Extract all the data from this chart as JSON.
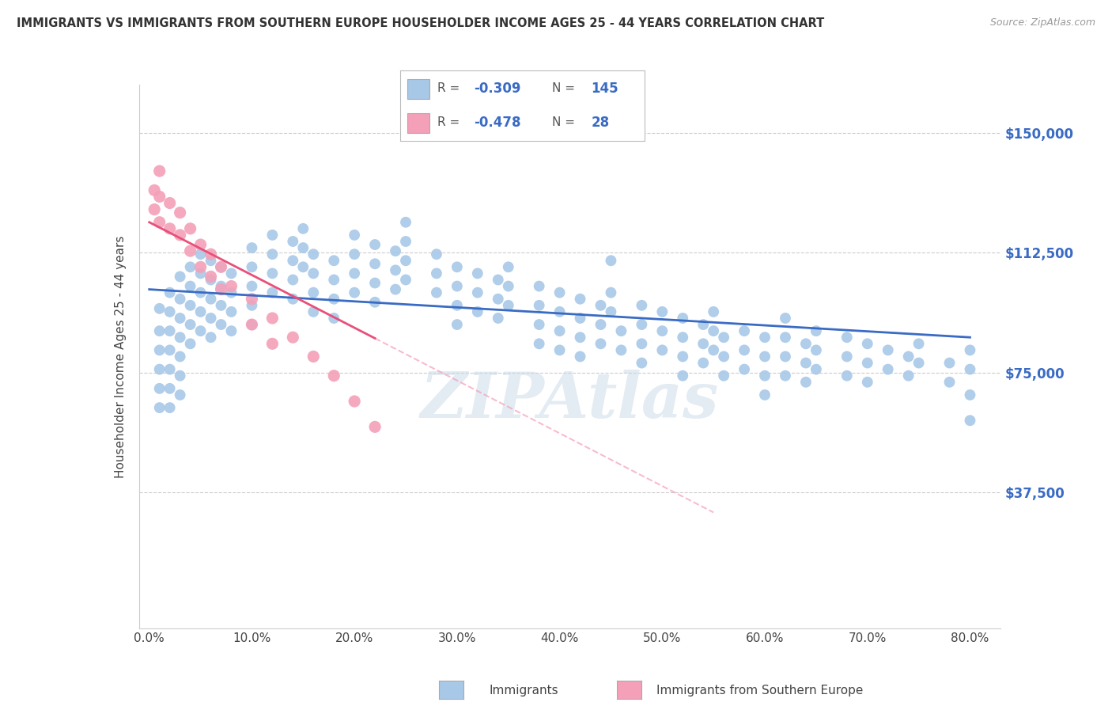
{
  "title": "IMMIGRANTS VS IMMIGRANTS FROM SOUTHERN EUROPE HOUSEHOLDER INCOME AGES 25 - 44 YEARS CORRELATION CHART",
  "source": "Source: ZipAtlas.com",
  "ylabel": "Householder Income Ages 25 - 44 years",
  "xlabel_ticks": [
    "0.0%",
    "10.0%",
    "20.0%",
    "30.0%",
    "40.0%",
    "50.0%",
    "60.0%",
    "70.0%",
    "80.0%"
  ],
  "xlabel_vals": [
    0,
    10,
    20,
    30,
    40,
    50,
    60,
    70,
    80
  ],
  "ytick_labels": [
    "$37,500",
    "$75,000",
    "$112,500",
    "$150,000"
  ],
  "ytick_vals": [
    37500,
    75000,
    112500,
    150000
  ],
  "ylim": [
    -5000,
    165000
  ],
  "xlim": [
    -1,
    83
  ],
  "blue_color": "#a8c8e8",
  "pink_color": "#f4a0b8",
  "blue_line_color": "#3a6bc4",
  "pink_line_color": "#e8507a",
  "watermark": "ZIPAtlas",
  "background_color": "#ffffff",
  "grid_color": "#cccccc",
  "legend_label_blue": "Immigrants",
  "legend_label_pink": "Immigrants from Southern Europe",
  "blue_scatter": [
    [
      1,
      95000
    ],
    [
      1,
      88000
    ],
    [
      1,
      82000
    ],
    [
      1,
      76000
    ],
    [
      1,
      70000
    ],
    [
      1,
      64000
    ],
    [
      2,
      100000
    ],
    [
      2,
      94000
    ],
    [
      2,
      88000
    ],
    [
      2,
      82000
    ],
    [
      2,
      76000
    ],
    [
      2,
      70000
    ],
    [
      2,
      64000
    ],
    [
      3,
      105000
    ],
    [
      3,
      98000
    ],
    [
      3,
      92000
    ],
    [
      3,
      86000
    ],
    [
      3,
      80000
    ],
    [
      3,
      74000
    ],
    [
      3,
      68000
    ],
    [
      4,
      108000
    ],
    [
      4,
      102000
    ],
    [
      4,
      96000
    ],
    [
      4,
      90000
    ],
    [
      4,
      84000
    ],
    [
      5,
      112000
    ],
    [
      5,
      106000
    ],
    [
      5,
      100000
    ],
    [
      5,
      94000
    ],
    [
      5,
      88000
    ],
    [
      6,
      110000
    ],
    [
      6,
      104000
    ],
    [
      6,
      98000
    ],
    [
      6,
      92000
    ],
    [
      6,
      86000
    ],
    [
      7,
      108000
    ],
    [
      7,
      102000
    ],
    [
      7,
      96000
    ],
    [
      7,
      90000
    ],
    [
      8,
      106000
    ],
    [
      8,
      100000
    ],
    [
      8,
      94000
    ],
    [
      8,
      88000
    ],
    [
      10,
      114000
    ],
    [
      10,
      108000
    ],
    [
      10,
      102000
    ],
    [
      10,
      96000
    ],
    [
      10,
      90000
    ],
    [
      12,
      118000
    ],
    [
      12,
      112000
    ],
    [
      12,
      106000
    ],
    [
      12,
      100000
    ],
    [
      14,
      116000
    ],
    [
      14,
      110000
    ],
    [
      14,
      104000
    ],
    [
      14,
      98000
    ],
    [
      15,
      120000
    ],
    [
      15,
      114000
    ],
    [
      15,
      108000
    ],
    [
      16,
      112000
    ],
    [
      16,
      106000
    ],
    [
      16,
      100000
    ],
    [
      16,
      94000
    ],
    [
      18,
      110000
    ],
    [
      18,
      104000
    ],
    [
      18,
      98000
    ],
    [
      18,
      92000
    ],
    [
      20,
      118000
    ],
    [
      20,
      112000
    ],
    [
      20,
      106000
    ],
    [
      20,
      100000
    ],
    [
      22,
      115000
    ],
    [
      22,
      109000
    ],
    [
      22,
      103000
    ],
    [
      22,
      97000
    ],
    [
      24,
      113000
    ],
    [
      24,
      107000
    ],
    [
      24,
      101000
    ],
    [
      25,
      122000
    ],
    [
      25,
      116000
    ],
    [
      25,
      110000
    ],
    [
      25,
      104000
    ],
    [
      28,
      112000
    ],
    [
      28,
      106000
    ],
    [
      28,
      100000
    ],
    [
      30,
      108000
    ],
    [
      30,
      102000
    ],
    [
      30,
      96000
    ],
    [
      30,
      90000
    ],
    [
      32,
      106000
    ],
    [
      32,
      100000
    ],
    [
      32,
      94000
    ],
    [
      34,
      104000
    ],
    [
      34,
      98000
    ],
    [
      34,
      92000
    ],
    [
      35,
      108000
    ],
    [
      35,
      102000
    ],
    [
      35,
      96000
    ],
    [
      38,
      102000
    ],
    [
      38,
      96000
    ],
    [
      38,
      90000
    ],
    [
      38,
      84000
    ],
    [
      40,
      100000
    ],
    [
      40,
      94000
    ],
    [
      40,
      88000
    ],
    [
      40,
      82000
    ],
    [
      42,
      98000
    ],
    [
      42,
      92000
    ],
    [
      42,
      86000
    ],
    [
      42,
      80000
    ],
    [
      44,
      96000
    ],
    [
      44,
      90000
    ],
    [
      44,
      84000
    ],
    [
      45,
      110000
    ],
    [
      45,
      100000
    ],
    [
      45,
      94000
    ],
    [
      46,
      88000
    ],
    [
      46,
      82000
    ],
    [
      48,
      96000
    ],
    [
      48,
      90000
    ],
    [
      48,
      84000
    ],
    [
      48,
      78000
    ],
    [
      50,
      94000
    ],
    [
      50,
      88000
    ],
    [
      50,
      82000
    ],
    [
      52,
      92000
    ],
    [
      52,
      86000
    ],
    [
      52,
      80000
    ],
    [
      52,
      74000
    ],
    [
      54,
      90000
    ],
    [
      54,
      84000
    ],
    [
      54,
      78000
    ],
    [
      55,
      94000
    ],
    [
      55,
      88000
    ],
    [
      55,
      82000
    ],
    [
      56,
      86000
    ],
    [
      56,
      80000
    ],
    [
      56,
      74000
    ],
    [
      58,
      88000
    ],
    [
      58,
      82000
    ],
    [
      58,
      76000
    ],
    [
      60,
      86000
    ],
    [
      60,
      80000
    ],
    [
      60,
      74000
    ],
    [
      60,
      68000
    ],
    [
      62,
      92000
    ],
    [
      62,
      86000
    ],
    [
      62,
      80000
    ],
    [
      62,
      74000
    ],
    [
      64,
      84000
    ],
    [
      64,
      78000
    ],
    [
      64,
      72000
    ],
    [
      65,
      88000
    ],
    [
      65,
      82000
    ],
    [
      65,
      76000
    ],
    [
      68,
      86000
    ],
    [
      68,
      80000
    ],
    [
      68,
      74000
    ],
    [
      70,
      84000
    ],
    [
      70,
      78000
    ],
    [
      70,
      72000
    ],
    [
      72,
      82000
    ],
    [
      72,
      76000
    ],
    [
      74,
      80000
    ],
    [
      74,
      74000
    ],
    [
      75,
      84000
    ],
    [
      75,
      78000
    ],
    [
      78,
      78000
    ],
    [
      78,
      72000
    ],
    [
      80,
      82000
    ],
    [
      80,
      76000
    ],
    [
      80,
      68000
    ],
    [
      80,
      60000
    ]
  ],
  "pink_scatter": [
    [
      0.5,
      132000
    ],
    [
      0.5,
      126000
    ],
    [
      1,
      138000
    ],
    [
      1,
      130000
    ],
    [
      1,
      122000
    ],
    [
      2,
      128000
    ],
    [
      2,
      120000
    ],
    [
      3,
      125000
    ],
    [
      3,
      118000
    ],
    [
      4,
      120000
    ],
    [
      4,
      113000
    ],
    [
      5,
      115000
    ],
    [
      5,
      108000
    ],
    [
      6,
      112000
    ],
    [
      6,
      105000
    ],
    [
      7,
      108000
    ],
    [
      7,
      101000
    ],
    [
      8,
      102000
    ],
    [
      10,
      98000
    ],
    [
      10,
      90000
    ],
    [
      12,
      92000
    ],
    [
      12,
      84000
    ],
    [
      14,
      86000
    ],
    [
      16,
      80000
    ],
    [
      18,
      74000
    ],
    [
      20,
      66000
    ],
    [
      22,
      58000
    ]
  ]
}
